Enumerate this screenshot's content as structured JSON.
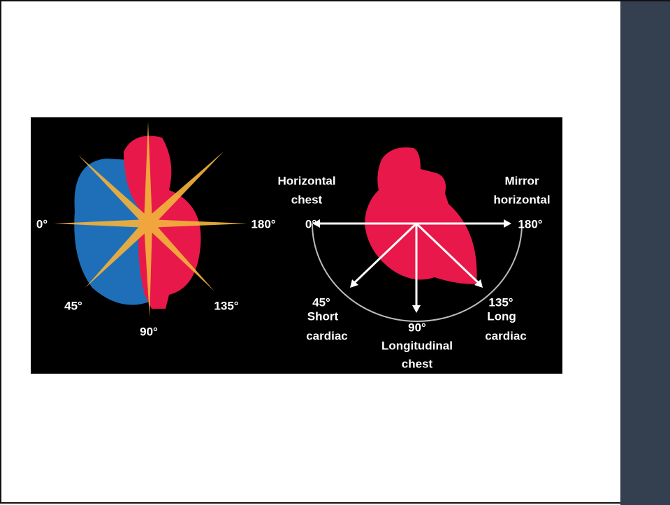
{
  "figure": {
    "left": {
      "angles": [
        "0°",
        "180°",
        "45°",
        "135°",
        "90°"
      ]
    },
    "right": {
      "planes": [
        {
          "angle": "0°",
          "name": [
            "Horizontal",
            "chest"
          ]
        },
        {
          "angle": "180°",
          "name": [
            "Mirror",
            "horizontal"
          ]
        },
        {
          "angle": "45°",
          "name": [
            "Short",
            "cardiac"
          ]
        },
        {
          "angle": "90°",
          "name": [
            "Longitudinal",
            "chest"
          ]
        },
        {
          "angle": "135°",
          "name": [
            "Long",
            "cardiac"
          ]
        }
      ]
    }
  }
}
